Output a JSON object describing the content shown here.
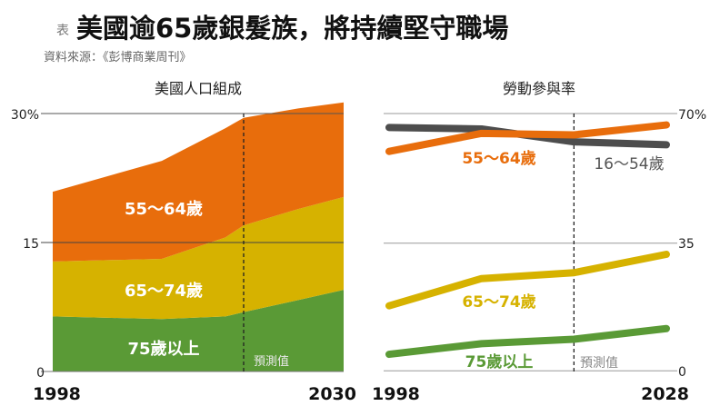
{
  "header": {
    "prefix": "表",
    "title": "美國逾65歲銀髮族，將持續堅守職場",
    "source": "資料來源：《彭博商業周刊》"
  },
  "colors": {
    "orange": "#e86d0c",
    "yellow": "#d6b200",
    "green": "#5a9a36",
    "gray": "#4d4d4d"
  },
  "chart_data": [
    {
      "type": "area",
      "stacked": true,
      "title": "美國人口組成",
      "x": [
        1998,
        2010,
        2017,
        2019,
        2025,
        2030
      ],
      "x_tick_labels": [
        "1998",
        "2030"
      ],
      "y_tick_labels": [
        "30%",
        "15",
        "0"
      ],
      "ylim": [
        0,
        30
      ],
      "grid": true,
      "forecast_start": 2019,
      "forecast_label": "預測值",
      "series": [
        {
          "name": "75歲以上",
          "color": "#5a9a36",
          "values": [
            6.4,
            6.1,
            6.4,
            6.9,
            8.3,
            9.5
          ]
        },
        {
          "name": "65～74歲",
          "color": "#d6b200",
          "values": [
            6.4,
            7.0,
            9.2,
            10.1,
            10.6,
            10.8
          ]
        },
        {
          "name": "55～64歲",
          "color": "#e86d0c",
          "values": [
            8.1,
            11.4,
            12.7,
            12.5,
            11.7,
            11.0
          ]
        }
      ]
    },
    {
      "type": "line",
      "title": "勞動參與率",
      "x": [
        1998,
        2008,
        2018,
        2028
      ],
      "x_tick_labels": [
        "1998",
        "2028"
      ],
      "y_tick_labels": [
        "70%",
        "35",
        "0"
      ],
      "ylim": [
        0,
        70
      ],
      "grid": true,
      "forecast_start": 2018,
      "forecast_label": "預測值",
      "series": [
        {
          "name": "16～54歲",
          "color": "#4d4d4d",
          "values": [
            66.2,
            65.8,
            62.3,
            61.5
          ]
        },
        {
          "name": "55～64歲",
          "color": "#e86d0c",
          "values": [
            59.7,
            64.6,
            64.2,
            66.9
          ]
        },
        {
          "name": "65～74歲",
          "color": "#d6b200",
          "values": [
            17.7,
            25.1,
            26.7,
            31.7
          ]
        },
        {
          "name": "75歲以上",
          "color": "#5a9a36",
          "values": [
            4.5,
            7.4,
            8.6,
            11.5
          ]
        }
      ]
    }
  ]
}
